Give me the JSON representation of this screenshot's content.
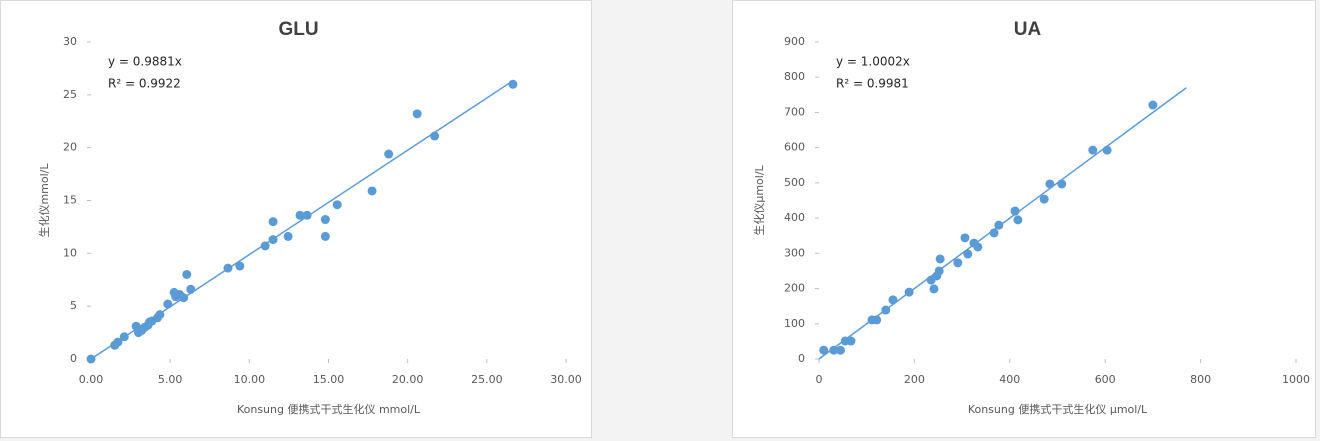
{
  "chart_data": [
    {
      "type": "scatter",
      "title": "GLU",
      "annotations": [
        "y = 0.9881x",
        "R² = 0.9922"
      ],
      "xlabel": "Konsung 便携式干式生化仪 mmol/L",
      "ylabel": "生化仪mmol/L",
      "color": "#5b9bd5",
      "x": [
        0,
        1.5,
        1.7,
        2.1,
        2.85,
        3.0,
        3.2,
        3.4,
        3.6,
        3.7,
        3.85,
        4.2,
        4.35,
        4.85,
        5.25,
        5.35,
        5.6,
        5.85,
        6.05,
        6.3,
        8.65,
        9.4,
        11.0,
        11.5,
        11.5,
        12.45,
        13.2,
        13.65,
        14.8,
        14.8,
        15.55,
        17.75,
        18.8,
        20.6,
        21.7,
        26.65
      ],
      "values": [
        0,
        1.3,
        1.6,
        2.1,
        3.1,
        2.5,
        2.7,
        3.0,
        3.2,
        3.5,
        3.6,
        3.9,
        4.2,
        5.2,
        6.3,
        5.9,
        6.1,
        5.8,
        8.0,
        6.6,
        8.6,
        8.8,
        10.7,
        11.3,
        13.0,
        11.6,
        13.6,
        13.6,
        13.2,
        11.6,
        14.6,
        15.9,
        19.4,
        23.2,
        21.1,
        26.0
      ],
      "trendline": {
        "x": [
          0,
          26.7
        ],
        "values": [
          0,
          26.38
        ]
      },
      "xlim": [
        0,
        30
      ],
      "ylim": [
        0,
        30
      ],
      "xticks": [
        {
          "value": 0,
          "label": "0.00"
        },
        {
          "value": 5,
          "label": "5.00"
        },
        {
          "value": 10,
          "label": "10.00"
        },
        {
          "value": 15,
          "label": "15.00"
        },
        {
          "value": 20,
          "label": "20.00"
        },
        {
          "value": 25,
          "label": "25.00"
        },
        {
          "value": 30,
          "label": "30.00"
        }
      ],
      "yticks": [
        0,
        5,
        10,
        15,
        20,
        25,
        30
      ]
    },
    {
      "type": "scatter",
      "title": "UA",
      "annotations": [
        "y = 1.0002x",
        "R² = 0.9981"
      ],
      "xlabel": "Konsung 便携式干式生化仪 µmol/L",
      "ylabel": "生化仪µmol/L",
      "color": "#5b9bd5",
      "x": [
        10,
        31,
        45,
        55,
        67,
        111,
        121,
        140,
        155,
        189,
        235,
        241,
        247,
        252,
        254,
        291,
        306,
        312,
        325,
        333,
        367,
        377,
        411,
        417,
        472,
        484,
        509,
        574,
        604,
        700
      ],
      "values": [
        25,
        25,
        25,
        51,
        51,
        111,
        111,
        139,
        168,
        190,
        224,
        199,
        236,
        250,
        284,
        273,
        344,
        298,
        329,
        318,
        358,
        380,
        420,
        395,
        454,
        497,
        497,
        593,
        593,
        721
      ],
      "trendline": {
        "x": [
          0,
          770
        ],
        "values": [
          0,
          770.15
        ]
      },
      "xlim": [
        0,
        1000
      ],
      "ylim": [
        0,
        900
      ],
      "xticks": [
        0,
        200,
        400,
        600,
        800,
        1000
      ],
      "yticks": [
        0,
        100,
        200,
        300,
        400,
        500,
        600,
        700,
        800,
        900
      ]
    }
  ]
}
